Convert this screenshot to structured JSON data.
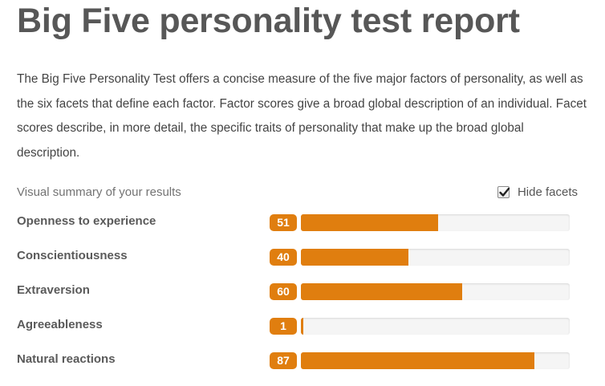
{
  "page": {
    "title": "Big Five personality test report",
    "intro": "The Big Five Personality Test offers a concise measure of the five major factors of personality, as well as the six facets that define each factor. Factor scores give a broad global description of an individual. Facet scores describe, in more detail, the specific traits of personality that make up the broad global description."
  },
  "summary": {
    "label": "Visual summary of your results",
    "hide_facets_label": "Hide facets",
    "hide_facets_checked": true
  },
  "colors": {
    "accent": "#e07e0f",
    "track": "#f5f5f5"
  },
  "factors": [
    {
      "name": "Openness to experience",
      "score": "51",
      "percent": 51
    },
    {
      "name": "Conscientiousness",
      "score": "40",
      "percent": 40
    },
    {
      "name": "Extraversion",
      "score": "60",
      "percent": 60
    },
    {
      "name": "Agreeableness",
      "score": "1",
      "percent": 1
    },
    {
      "name": "Natural reactions",
      "score": "87",
      "percent": 87
    }
  ]
}
